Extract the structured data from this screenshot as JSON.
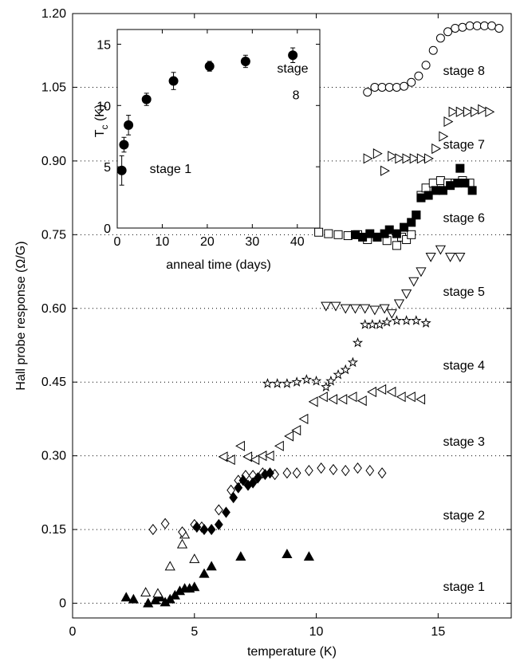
{
  "chart_data": [
    {
      "type": "scatter",
      "xlabel": "temperature (K)",
      "ylabel": "Hall probe response (Ω/G)",
      "xlim": [
        0,
        18
      ],
      "ylim": [
        -0.03,
        1.2
      ],
      "xticks": [
        0,
        5,
        10,
        15
      ],
      "xtick_labels": [
        "0",
        "5",
        "10",
        "15"
      ],
      "yticks": [
        0,
        0.15,
        0.3,
        0.45,
        0.6,
        0.75,
        0.9,
        1.05,
        1.2
      ],
      "ytick_labels": [
        "0",
        "0.15",
        "0.30",
        "0.45",
        "0.60",
        "0.75",
        "0.90",
        "1.05",
        "1.20"
      ],
      "grid": "dotted horizontal reference lines at each stage baseline",
      "stage_labels": [
        {
          "text": "stage 1",
          "x": 15.2,
          "y": 0.035
        },
        {
          "text": "stage 2",
          "x": 15.2,
          "y": 0.18
        },
        {
          "text": "stage 3",
          "x": 15.2,
          "y": 0.33
        },
        {
          "text": "stage 4",
          "x": 15.2,
          "y": 0.485
        },
        {
          "text": "stage 5",
          "x": 15.2,
          "y": 0.635
        },
        {
          "text": "stage 6",
          "x": 15.2,
          "y": 0.785
        },
        {
          "text": "stage 7",
          "x": 15.2,
          "y": 0.935
        },
        {
          "text": "stage 8",
          "x": 15.2,
          "y": 1.085
        }
      ],
      "series": [
        {
          "marker": "triangle-up-filled",
          "points": [
            [
              2.2,
              0.012
            ],
            [
              2.5,
              0.008
            ],
            [
              3.1,
              0.0
            ],
            [
              3.4,
              0.006
            ],
            [
              3.6,
              0.012
            ],
            [
              3.8,
              0.002
            ],
            [
              4.0,
              0.008
            ],
            [
              4.2,
              0.016
            ],
            [
              4.4,
              0.025
            ],
            [
              4.6,
              0.03
            ],
            [
              4.8,
              0.03
            ],
            [
              5.0,
              0.033
            ],
            [
              5.4,
              0.06
            ],
            [
              5.7,
              0.075
            ],
            [
              6.9,
              0.095
            ],
            [
              8.8,
              0.1
            ],
            [
              9.7,
              0.095
            ]
          ]
        },
        {
          "marker": "triangle-up-open",
          "points": [
            [
              3.0,
              0.022
            ],
            [
              3.5,
              0.02
            ],
            [
              4.0,
              0.075
            ],
            [
              4.5,
              0.12
            ],
            [
              4.6,
              0.14
            ],
            [
              5.0,
              0.09
            ]
          ]
        },
        {
          "marker": "diamond-open",
          "points": [
            [
              3.3,
              0.15
            ],
            [
              3.8,
              0.162
            ],
            [
              4.5,
              0.145
            ],
            [
              5.0,
              0.16
            ],
            [
              5.3,
              0.155
            ],
            [
              6.0,
              0.19
            ],
            [
              6.5,
              0.23
            ],
            [
              6.8,
              0.25
            ],
            [
              7.1,
              0.26
            ],
            [
              7.4,
              0.26
            ],
            [
              7.8,
              0.265
            ],
            [
              8.3,
              0.262
            ],
            [
              8.8,
              0.265
            ],
            [
              9.2,
              0.265
            ],
            [
              9.7,
              0.27
            ],
            [
              10.2,
              0.275
            ],
            [
              10.7,
              0.272
            ],
            [
              11.2,
              0.27
            ],
            [
              11.7,
              0.275
            ],
            [
              12.2,
              0.27
            ],
            [
              12.7,
              0.265
            ]
          ]
        },
        {
          "marker": "diamond-filled",
          "points": [
            [
              5.1,
              0.155
            ],
            [
              5.4,
              0.15
            ],
            [
              5.7,
              0.15
            ],
            [
              6.0,
              0.16
            ],
            [
              6.3,
              0.185
            ],
            [
              6.6,
              0.215
            ],
            [
              6.8,
              0.235
            ],
            [
              7.0,
              0.25
            ],
            [
              7.2,
              0.24
            ],
            [
              7.4,
              0.245
            ],
            [
              7.6,
              0.255
            ],
            [
              7.9,
              0.262
            ],
            [
              8.1,
              0.265
            ]
          ]
        },
        {
          "marker": "triangle-left-open",
          "points": [
            [
              6.2,
              0.298
            ],
            [
              6.5,
              0.292
            ],
            [
              6.9,
              0.32
            ],
            [
              7.2,
              0.298
            ],
            [
              7.5,
              0.292
            ],
            [
              7.8,
              0.3
            ],
            [
              8.1,
              0.3
            ],
            [
              8.5,
              0.32
            ],
            [
              8.9,
              0.34
            ],
            [
              9.2,
              0.352
            ],
            [
              9.5,
              0.375
            ],
            [
              9.9,
              0.41
            ],
            [
              10.3,
              0.42
            ],
            [
              10.7,
              0.415
            ],
            [
              11.1,
              0.415
            ],
            [
              11.5,
              0.42
            ],
            [
              11.9,
              0.412
            ],
            [
              12.3,
              0.43
            ],
            [
              12.7,
              0.435
            ],
            [
              13.1,
              0.43
            ],
            [
              13.5,
              0.42
            ],
            [
              13.9,
              0.42
            ],
            [
              14.3,
              0.415
            ]
          ]
        },
        {
          "marker": "star-open",
          "points": [
            [
              8.0,
              0.447
            ],
            [
              8.4,
              0.447
            ],
            [
              8.8,
              0.447
            ],
            [
              9.2,
              0.45
            ],
            [
              9.6,
              0.455
            ],
            [
              10.0,
              0.452
            ],
            [
              10.4,
              0.44
            ],
            [
              10.6,
              0.452
            ],
            [
              10.9,
              0.465
            ],
            [
              11.2,
              0.475
            ],
            [
              11.5,
              0.49
            ],
            [
              11.7,
              0.53
            ],
            [
              12.0,
              0.567
            ],
            [
              12.3,
              0.567
            ],
            [
              12.6,
              0.567
            ],
            [
              12.9,
              0.572
            ],
            [
              13.3,
              0.575
            ],
            [
              13.7,
              0.575
            ],
            [
              14.1,
              0.575
            ],
            [
              14.5,
              0.57
            ]
          ]
        },
        {
          "marker": "triangle-down-open",
          "points": [
            [
              10.4,
              0.605
            ],
            [
              10.8,
              0.605
            ],
            [
              11.2,
              0.6
            ],
            [
              11.6,
              0.6
            ],
            [
              12.0,
              0.6
            ],
            [
              12.4,
              0.597
            ],
            [
              12.8,
              0.6
            ],
            [
              13.1,
              0.59
            ],
            [
              13.4,
              0.61
            ],
            [
              13.7,
              0.63
            ],
            [
              14.0,
              0.655
            ],
            [
              14.3,
              0.675
            ],
            [
              14.7,
              0.705
            ],
            [
              15.1,
              0.72
            ],
            [
              15.5,
              0.705
            ],
            [
              15.9,
              0.705
            ]
          ]
        },
        {
          "marker": "square-open",
          "points": [
            [
              10.1,
              0.755
            ],
            [
              10.5,
              0.752
            ],
            [
              10.9,
              0.75
            ],
            [
              11.3,
              0.748
            ],
            [
              11.7,
              0.75
            ],
            [
              12.1,
              0.74
            ],
            [
              12.5,
              0.745
            ],
            [
              12.9,
              0.738
            ],
            [
              13.3,
              0.728
            ],
            [
              13.5,
              0.745
            ],
            [
              13.7,
              0.74
            ],
            [
              13.9,
              0.75
            ],
            [
              14.1,
              0.79
            ],
            [
              14.3,
              0.83
            ],
            [
              14.5,
              0.845
            ],
            [
              14.8,
              0.855
            ],
            [
              15.1,
              0.86
            ],
            [
              15.4,
              0.855
            ],
            [
              15.7,
              0.855
            ],
            [
              16.0,
              0.86
            ],
            [
              16.3,
              0.855
            ]
          ]
        },
        {
          "marker": "square-filled",
          "points": [
            [
              11.6,
              0.75
            ],
            [
              11.9,
              0.745
            ],
            [
              12.2,
              0.752
            ],
            [
              12.5,
              0.745
            ],
            [
              12.8,
              0.752
            ],
            [
              13.0,
              0.76
            ],
            [
              13.3,
              0.752
            ],
            [
              13.6,
              0.765
            ],
            [
              13.9,
              0.775
            ],
            [
              14.1,
              0.79
            ],
            [
              14.3,
              0.825
            ],
            [
              14.6,
              0.83
            ],
            [
              14.9,
              0.84
            ],
            [
              15.2,
              0.84
            ],
            [
              15.5,
              0.85
            ],
            [
              15.8,
              0.855
            ],
            [
              16.1,
              0.855
            ],
            [
              16.4,
              0.84
            ],
            [
              15.9,
              0.885
            ]
          ]
        },
        {
          "marker": "triangle-right-open",
          "points": [
            [
              12.1,
              0.905
            ],
            [
              12.5,
              0.915
            ],
            [
              12.8,
              0.88
            ],
            [
              13.1,
              0.91
            ],
            [
              13.4,
              0.905
            ],
            [
              13.7,
              0.905
            ],
            [
              14.0,
              0.905
            ],
            [
              14.3,
              0.905
            ],
            [
              14.6,
              0.905
            ],
            [
              14.9,
              0.925
            ],
            [
              15.2,
              0.95
            ],
            [
              15.4,
              0.98
            ],
            [
              15.6,
              1.0
            ],
            [
              15.9,
              1.0
            ],
            [
              16.2,
              1.0
            ],
            [
              16.5,
              1.0
            ],
            [
              16.8,
              1.005
            ],
            [
              17.1,
              1.0
            ]
          ]
        },
        {
          "marker": "circle-open",
          "points": [
            [
              12.1,
              1.04
            ],
            [
              12.4,
              1.05
            ],
            [
              12.7,
              1.05
            ],
            [
              13.0,
              1.05
            ],
            [
              13.3,
              1.05
            ],
            [
              13.6,
              1.052
            ],
            [
              13.9,
              1.06
            ],
            [
              14.2,
              1.073
            ],
            [
              14.5,
              1.095
            ],
            [
              14.8,
              1.125
            ],
            [
              15.1,
              1.15
            ],
            [
              15.4,
              1.163
            ],
            [
              15.7,
              1.17
            ],
            [
              16.0,
              1.172
            ],
            [
              16.3,
              1.175
            ],
            [
              16.6,
              1.175
            ],
            [
              16.9,
              1.175
            ],
            [
              17.2,
              1.175
            ],
            [
              17.5,
              1.17
            ]
          ]
        }
      ]
    },
    {
      "type": "scatter",
      "inset": true,
      "xlabel": "anneal time (days)",
      "ylabel": "T",
      "ylabel_subscript": "c",
      "ylabel_suffix": " (K)",
      "xlim": [
        0,
        45
      ],
      "ylim": [
        0,
        16.2
      ],
      "xticks": [
        0,
        10,
        20,
        30,
        40
      ],
      "xtick_labels": [
        "0",
        "10",
        "20",
        "30",
        "40"
      ],
      "yticks": [
        0,
        5,
        10,
        15
      ],
      "ytick_labels": [
        "0",
        "5",
        "10",
        "15"
      ],
      "annotations": [
        {
          "text": "stage 1",
          "x": 7.2,
          "y": 4.5
        },
        {
          "text": "stage",
          "x": 35.5,
          "y": 12.7
        },
        {
          "text": "8",
          "x": 38.9,
          "y": 10.5
        }
      ],
      "series": [
        {
          "marker": "circle-filled",
          "points": [
            {
              "x": 1,
              "y": 4.7,
              "err": 1.2
            },
            {
              "x": 1.5,
              "y": 6.8,
              "err": 0.6
            },
            {
              "x": 2.5,
              "y": 8.4,
              "err": 0.8
            },
            {
              "x": 6.5,
              "y": 10.5,
              "err": 0.5
            },
            {
              "x": 12.5,
              "y": 12.0,
              "err": 0.7
            },
            {
              "x": 20.5,
              "y": 13.2,
              "err": 0.4
            },
            {
              "x": 28.5,
              "y": 13.6,
              "err": 0.5
            },
            {
              "x": 39,
              "y": 14.1,
              "err": 0.6
            }
          ]
        }
      ]
    }
  ]
}
